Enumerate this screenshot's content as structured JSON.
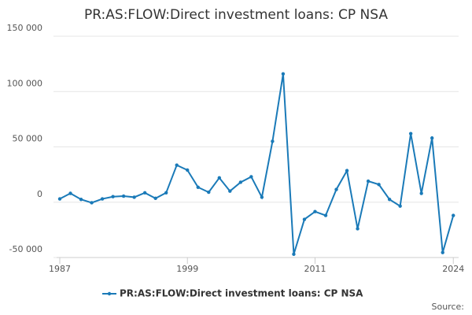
{
  "chart_data": {
    "type": "line",
    "title": "PR:AS:FLOW:Direct investment loans: CP NSA",
    "x": [
      1987,
      1988,
      1989,
      1990,
      1991,
      1992,
      1993,
      1994,
      1995,
      1996,
      1997,
      1998,
      1999,
      2000,
      2001,
      2002,
      2003,
      2004,
      2005,
      2006,
      2007,
      2008,
      2009,
      2010,
      2011,
      2012,
      2013,
      2014,
      2015,
      2016,
      2017,
      2018,
      2019,
      2020,
      2021,
      2022,
      2023,
      2024
    ],
    "series": [
      {
        "name": "PR:AS:FLOW:Direct investment loans: CP NSA",
        "color": "#1a7ab8",
        "values": [
          3000,
          8000,
          2500,
          -500,
          3000,
          5000,
          5500,
          4500,
          8500,
          3500,
          8500,
          33500,
          29000,
          13500,
          9000,
          22000,
          10000,
          18000,
          23000,
          4500,
          55000,
          116000,
          -47000,
          -15500,
          -8500,
          -12000,
          11500,
          28500,
          -24000,
          19000,
          16000,
          2500,
          -3500,
          62000,
          8000,
          58000,
          -45500,
          -12000
        ]
      }
    ],
    "xlim": [
      1987,
      2024.5
    ],
    "xticks": [
      1987,
      1999,
      2011,
      2024
    ],
    "ylim": [
      -50000,
      150000
    ],
    "yticks": [
      {
        "value": -50000,
        "label": "-50 000"
      },
      0,
      {
        "value": 50000,
        "label": "50 000"
      },
      {
        "value": 100000,
        "label": "100 000"
      },
      {
        "value": 150000,
        "label": "150 000"
      }
    ],
    "grid": true,
    "legend": "bottom",
    "source": "Source:"
  }
}
